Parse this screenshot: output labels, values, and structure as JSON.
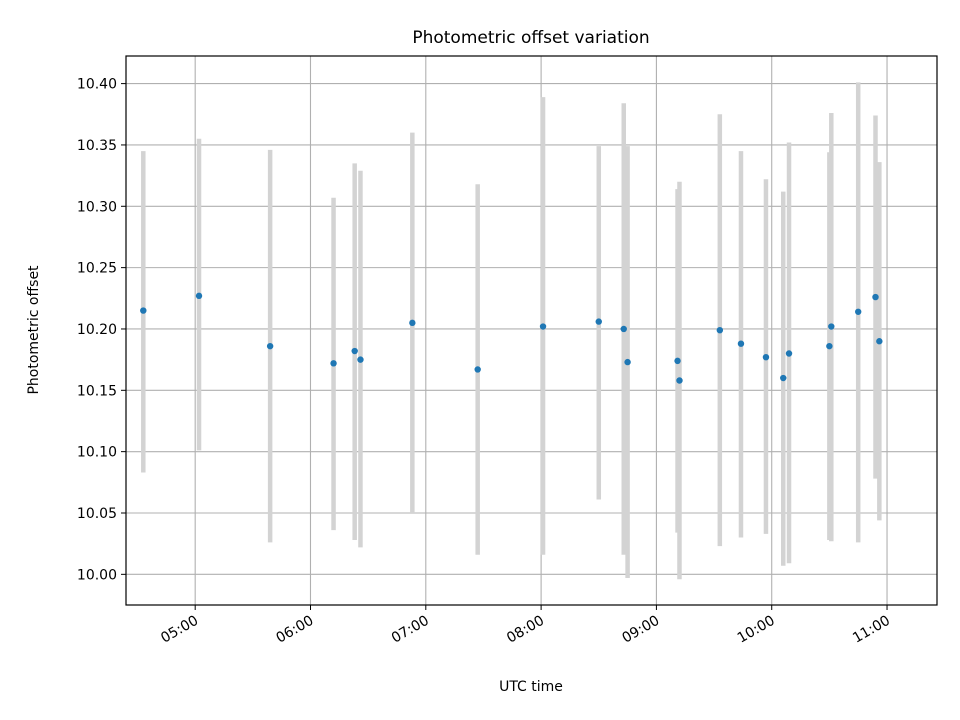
{
  "chart_data": {
    "type": "scatter",
    "title": "Photometric offset variation",
    "xlabel": "UTC time",
    "ylabel": "Photometric offset",
    "x_unit": "UTC time of day (HH:MM)",
    "xlim": [
      "04:24",
      "11:26"
    ],
    "ylim": [
      9.975,
      10.4225
    ],
    "x_ticks": [
      "05:00",
      "06:00",
      "07:00",
      "08:00",
      "09:00",
      "10:00",
      "11:00"
    ],
    "y_ticks": [
      "10.00",
      "10.05",
      "10.10",
      "10.15",
      "10.20",
      "10.25",
      "10.30",
      "10.35",
      "10.40"
    ],
    "grid": true,
    "point_color": "#1f77b4",
    "errorbar_color": "#d3d3d3",
    "points": [
      {
        "x": "04:33",
        "y": 10.215,
        "ylo": 10.083,
        "yhi": 10.345
      },
      {
        "x": "05:02",
        "y": 10.227,
        "ylo": 10.101,
        "yhi": 10.355
      },
      {
        "x": "05:39",
        "y": 10.186,
        "ylo": 10.026,
        "yhi": 10.346
      },
      {
        "x": "06:12",
        "y": 10.172,
        "ylo": 10.036,
        "yhi": 10.307
      },
      {
        "x": "06:23",
        "y": 10.182,
        "ylo": 10.028,
        "yhi": 10.335
      },
      {
        "x": "06:26",
        "y": 10.175,
        "ylo": 10.022,
        "yhi": 10.329
      },
      {
        "x": "06:53",
        "y": 10.205,
        "ylo": 10.05,
        "yhi": 10.36
      },
      {
        "x": "07:27",
        "y": 10.167,
        "ylo": 10.016,
        "yhi": 10.318
      },
      {
        "x": "08:01",
        "y": 10.202,
        "ylo": 10.016,
        "yhi": 10.389
      },
      {
        "x": "08:30",
        "y": 10.206,
        "ylo": 10.061,
        "yhi": 10.349
      },
      {
        "x": "08:43",
        "y": 10.2,
        "ylo": 10.016,
        "yhi": 10.384
      },
      {
        "x": "08:45",
        "y": 10.173,
        "ylo": 9.997,
        "yhi": 10.349
      },
      {
        "x": "09:11",
        "y": 10.174,
        "ylo": 10.034,
        "yhi": 10.314
      },
      {
        "x": "09:12",
        "y": 10.158,
        "ylo": 9.996,
        "yhi": 10.32
      },
      {
        "x": "09:33",
        "y": 10.199,
        "ylo": 10.023,
        "yhi": 10.375
      },
      {
        "x": "09:44",
        "y": 10.188,
        "ylo": 10.03,
        "yhi": 10.345
      },
      {
        "x": "09:57",
        "y": 10.177,
        "ylo": 10.033,
        "yhi": 10.322
      },
      {
        "x": "10:06",
        "y": 10.16,
        "ylo": 10.007,
        "yhi": 10.312
      },
      {
        "x": "10:09",
        "y": 10.18,
        "ylo": 10.009,
        "yhi": 10.352
      },
      {
        "x": "10:30",
        "y": 10.186,
        "ylo": 10.028,
        "yhi": 10.344
      },
      {
        "x": "10:31",
        "y": 10.202,
        "ylo": 10.027,
        "yhi": 10.376
      },
      {
        "x": "10:45",
        "y": 10.214,
        "ylo": 10.026,
        "yhi": 10.401
      },
      {
        "x": "10:54",
        "y": 10.226,
        "ylo": 10.078,
        "yhi": 10.374
      },
      {
        "x": "10:56",
        "y": 10.19,
        "ylo": 10.044,
        "yhi": 10.336
      }
    ]
  }
}
